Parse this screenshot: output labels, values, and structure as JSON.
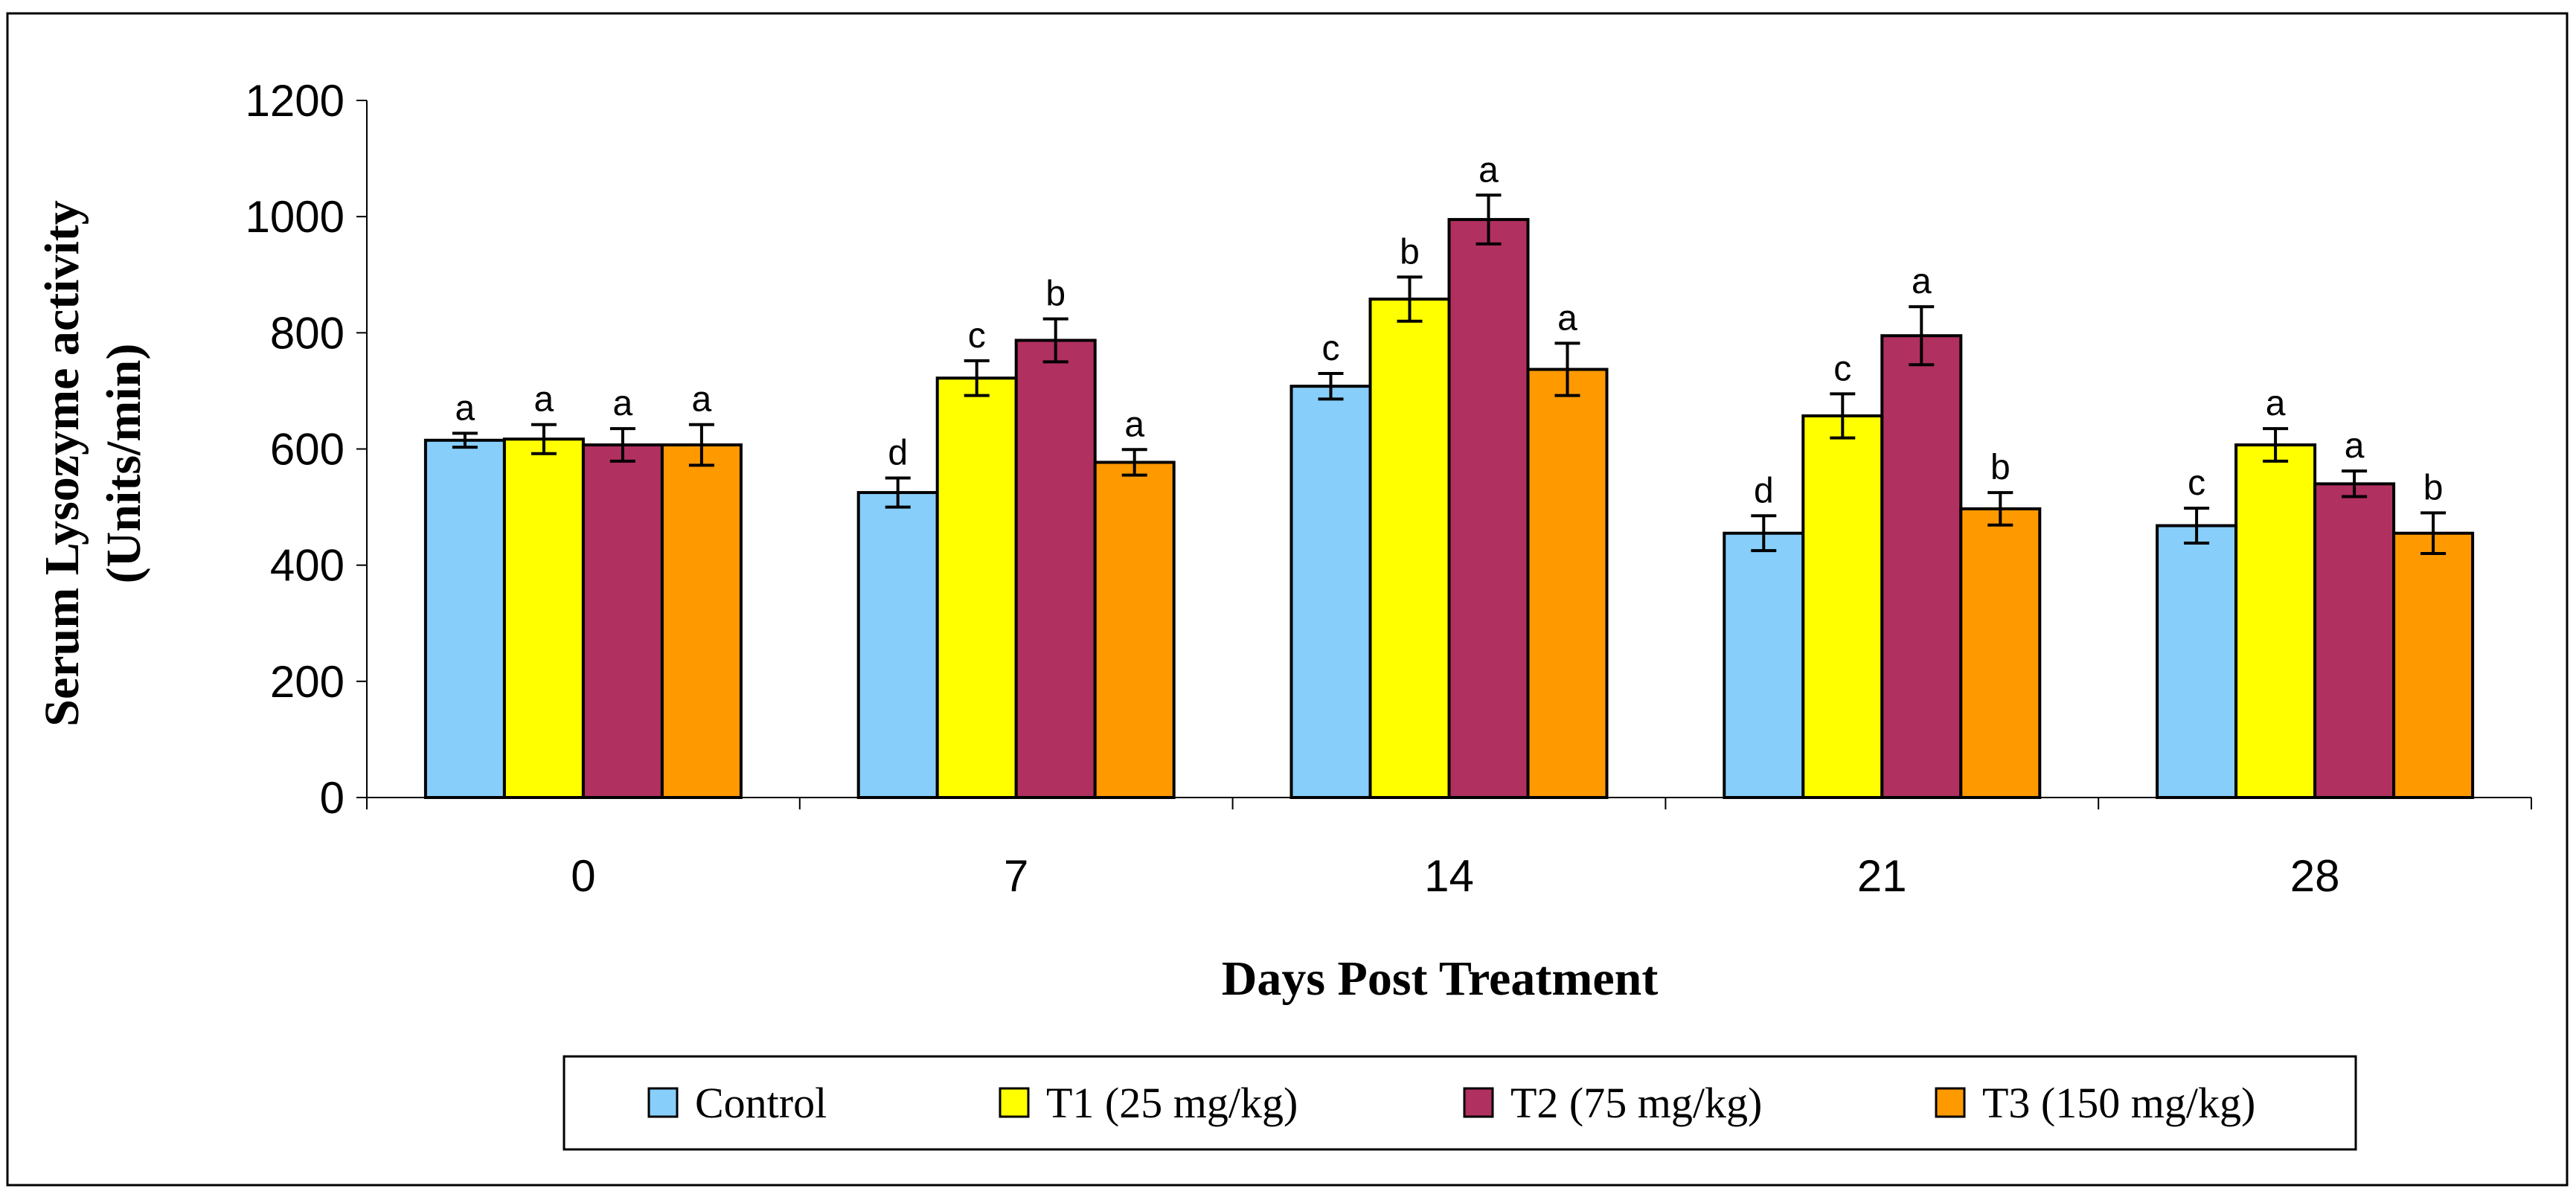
{
  "chart_data": {
    "type": "bar",
    "title": "",
    "xlabel": "Days Post Treatment",
    "ylabel_line1": "Serum Lysozyme activity",
    "ylabel_line2": "(Units/min)",
    "ylim": [
      0,
      1200
    ],
    "yticks": [
      "0",
      "200",
      "400",
      "600",
      "800",
      "1000",
      "1200"
    ],
    "grid": false,
    "legend_position": "bottom",
    "categories": [
      "0",
      "7",
      "14",
      "21",
      "28"
    ],
    "series": [
      {
        "name": "Control",
        "color": "#87CEFA",
        "values": [
          615,
          525,
          708,
          455,
          468
        ],
        "errors": [
          12,
          25,
          22,
          30,
          30
        ],
        "letters": [
          "a",
          "d",
          "c",
          "d",
          "c"
        ]
      },
      {
        "name": "T1 (25 mg/kg)",
        "color": "#FFFF00",
        "values": [
          617,
          722,
          858,
          657,
          607
        ],
        "errors": [
          25,
          30,
          38,
          38,
          28
        ],
        "letters": [
          "a",
          "c",
          "b",
          "c",
          "a"
        ]
      },
      {
        "name": "T2 (75 mg/kg)",
        "color": "#B03060",
        "values": [
          607,
          787,
          995,
          795,
          540
        ],
        "errors": [
          28,
          37,
          42,
          50,
          22
        ],
        "letters": [
          "a",
          "b",
          "a",
          "a",
          "a"
        ]
      },
      {
        "name": "T3 (150 mg/kg)",
        "color": "#FF9900",
        "values": [
          607,
          577,
          737,
          497,
          455
        ],
        "errors": [
          35,
          22,
          45,
          28,
          35
        ],
        "letters": [
          "a",
          "a",
          "a",
          "b",
          "b"
        ]
      }
    ]
  }
}
